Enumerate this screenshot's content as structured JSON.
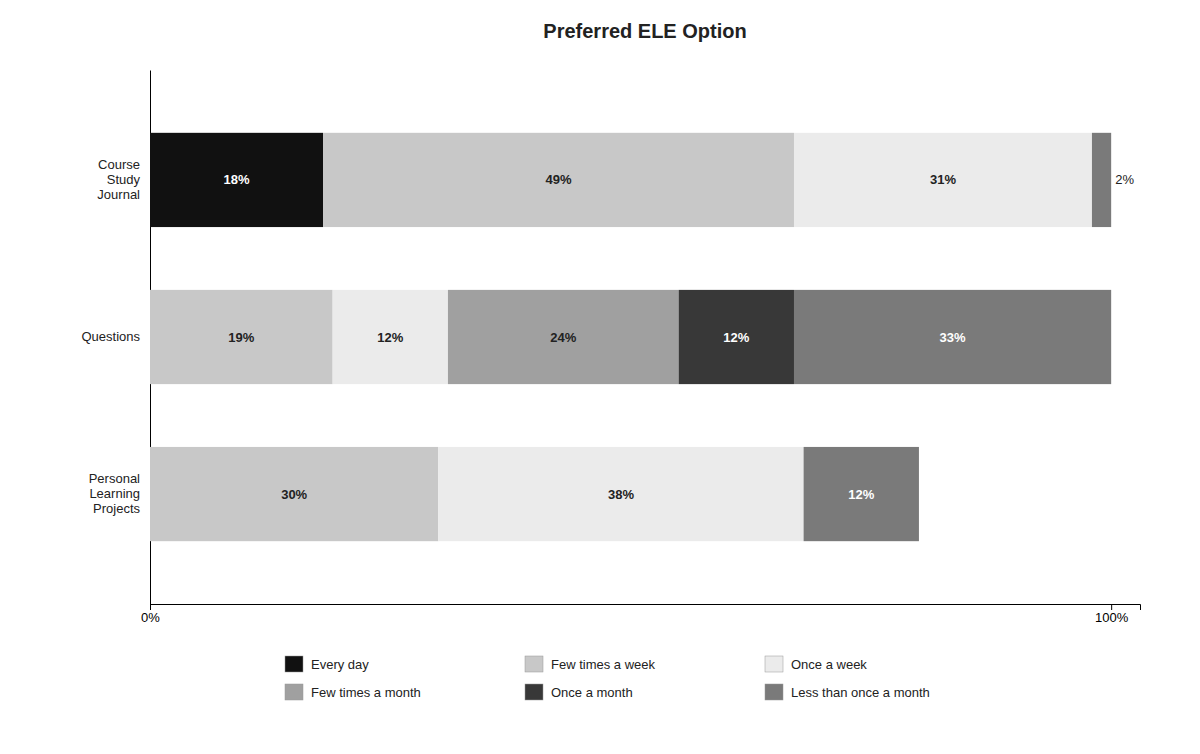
{
  "chart_data": {
    "type": "bar",
    "orientation": "horizontal",
    "stacked": true,
    "data_labels": true,
    "legend": "bottom",
    "grid": false,
    "title": "Preferred ELE Option",
    "categories": [
      "Course\nStudy\nJournal",
      "Questions",
      "Personal\nLearning\nProjects"
    ],
    "xlim": [
      0,
      103
    ],
    "xticks": [
      {
        "value": 0,
        "label": "0%"
      },
      {
        "value": 100,
        "label": "100%"
      }
    ],
    "series": [
      {
        "name": "Every day",
        "color": "#111111",
        "values": [
          18,
          0,
          0
        ],
        "value_labels": [
          "18%",
          null,
          null
        ]
      },
      {
        "name": "Few times a week",
        "color": "#c8c8c8",
        "values": [
          49,
          19,
          30
        ],
        "value_labels": [
          "49%",
          "19%",
          "30%"
        ]
      },
      {
        "name": "Once a week",
        "color": "#ebebeb",
        "values": [
          31,
          12,
          38
        ],
        "value_labels": [
          "31%",
          "12%",
          "38%"
        ]
      },
      {
        "name": "Few times a month",
        "color": "#a0a0a0",
        "values": [
          0,
          24,
          0
        ],
        "value_labels": [
          null,
          "24%",
          null
        ]
      },
      {
        "name": "Once a month",
        "color": "#383838",
        "values": [
          0,
          12,
          0
        ],
        "value_labels": [
          null,
          "12%",
          null
        ]
      },
      {
        "name": "Less than once a month",
        "color": "#7a7a7a",
        "values": [
          2,
          33,
          12
        ],
        "value_labels": [
          "2%",
          "33%",
          "12%"
        ]
      }
    ]
  }
}
